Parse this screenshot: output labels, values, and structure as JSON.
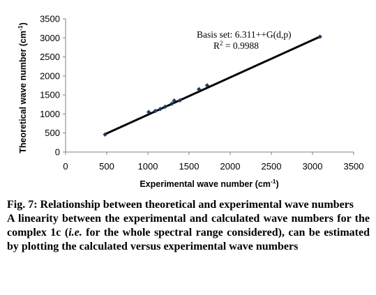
{
  "chart_data": {
    "type": "scatter",
    "xlabel": "Experimental wave number (cm",
    "xlabel_sup": "-1",
    "xlabel_end": ")",
    "ylabel": "Theoretical wave number (cm",
    "ylabel_sup": "-1",
    "ylabel_end": ")",
    "xlim": [
      0,
      3500
    ],
    "ylim": [
      0,
      3500
    ],
    "xticks": [
      0,
      500,
      1000,
      1500,
      2000,
      2500,
      3000,
      3500
    ],
    "yticks": [
      0,
      500,
      1000,
      1500,
      2000,
      2500,
      3000,
      3500
    ],
    "grid": false,
    "legend": "none",
    "points": [
      {
        "x": 480,
        "y": 460
      },
      {
        "x": 1010,
        "y": 1050
      },
      {
        "x": 1090,
        "y": 1080
      },
      {
        "x": 1150,
        "y": 1130
      },
      {
        "x": 1210,
        "y": 1190
      },
      {
        "x": 1290,
        "y": 1270
      },
      {
        "x": 1320,
        "y": 1350
      },
      {
        "x": 1390,
        "y": 1360
      },
      {
        "x": 1620,
        "y": 1650
      },
      {
        "x": 1720,
        "y": 1750
      },
      {
        "x": 3090,
        "y": 3030
      }
    ],
    "trendline": {
      "x": [
        480,
        3090
      ],
      "y": [
        470,
        3030
      ]
    },
    "annotations": {
      "basis_set": "Basis set: 6.311++G(d,p)",
      "r2_label": "R",
      "r2_sup": "2",
      "r2_value": " = 0.9988"
    },
    "colors": {
      "marker": "#1f3a5f",
      "line": "#000000"
    }
  },
  "caption": {
    "fig_title": "Fig. 7: Relationship between theoretical and experimental wave numbers",
    "desc_part1": "A linearity between the experimental and calculated wave numbers for the complex 1c (",
    "desc_italic": "i.e.",
    "desc_part2": " for the whole spectral range considered), can be estimated by plotting the calculated versus experimental wave numbers"
  }
}
